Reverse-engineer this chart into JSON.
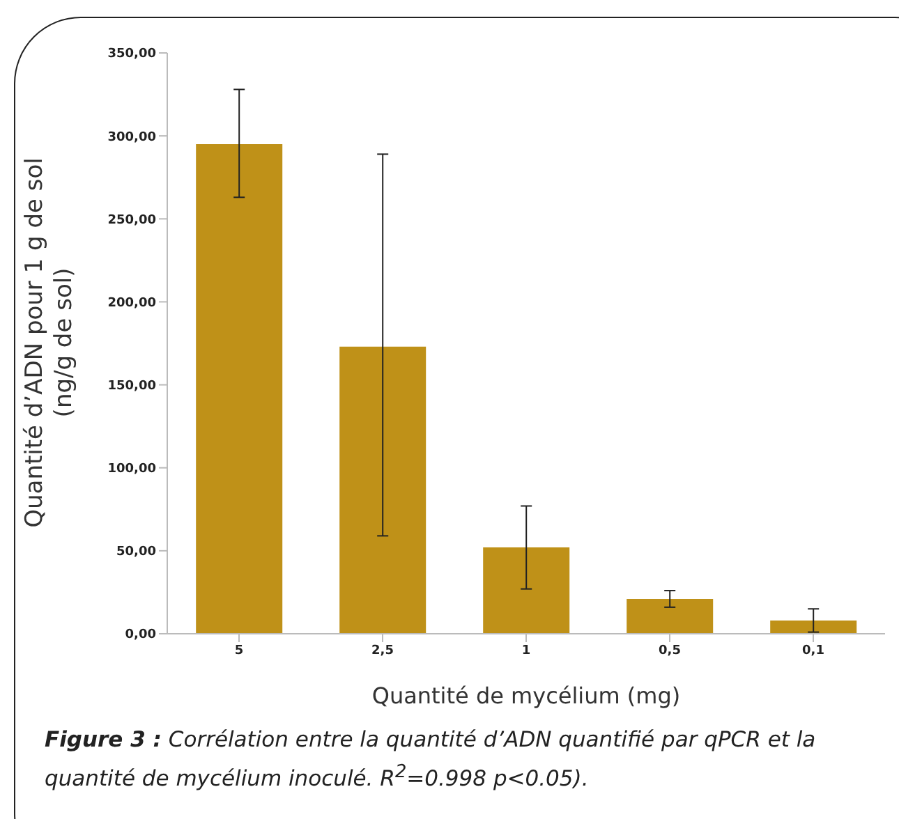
{
  "chart_data": {
    "type": "bar",
    "xlabel": "Quantité de mycélium (mg)",
    "ylabel": "Quantité d’ADN pour 1 g de sol\n(ng/g de sol)",
    "categories": [
      "5",
      "2,5",
      "1",
      "0,5",
      "0,1"
    ],
    "values": [
      295,
      173,
      52,
      21,
      8
    ],
    "errors": [
      [
        263,
        328
      ],
      [
        59,
        289
      ],
      [
        27,
        77
      ],
      [
        16,
        26
      ],
      [
        1,
        15
      ]
    ],
    "color": "#bf9118",
    "ylim": [
      0,
      350
    ],
    "yticks": [
      {
        "value": 0,
        "label": "0,00"
      },
      {
        "value": 50,
        "label": "50,00"
      },
      {
        "value": 100,
        "label": "100,00"
      },
      {
        "value": 150,
        "label": "150,00"
      },
      {
        "value": 200,
        "label": "200,00"
      },
      {
        "value": 250,
        "label": "250,00"
      },
      {
        "value": 300,
        "label": "300,00"
      },
      {
        "value": 350,
        "label": "350,00"
      }
    ],
    "grid": false,
    "legend": false,
    "annotations": [
      "Figure 3 : Corrélation entre la quantité d’ADN quantifié par qPCR et la quantité de mycélium inoculé. R$^{2}$=0.998 p<0.05)."
    ]
  }
}
